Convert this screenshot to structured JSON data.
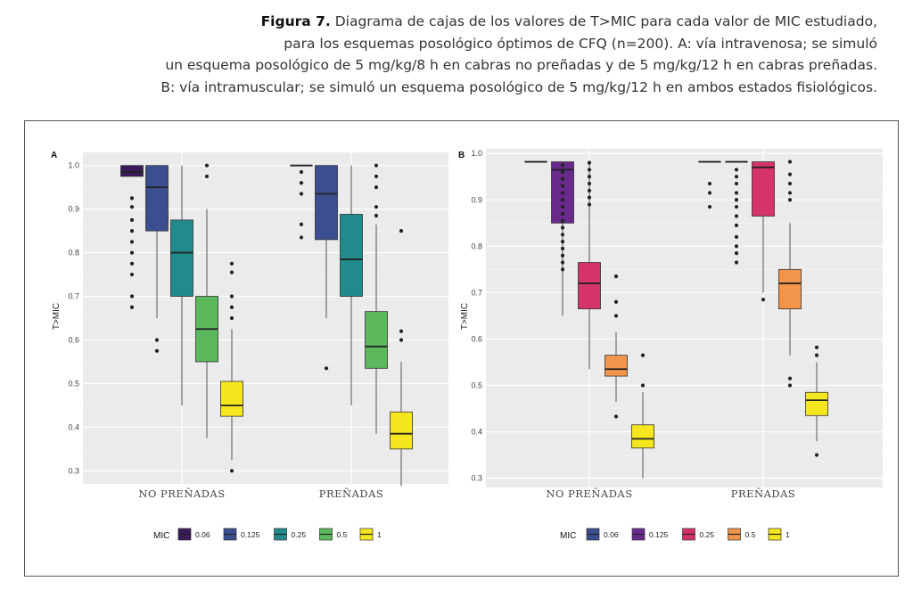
{
  "caption": {
    "label": "Figura 7.",
    "line1": " Diagrama de cajas de los valores de T>MIC para cada valor de MIC estudiado,",
    "line2": "para los esquemas posológico óptimos de CFQ (n=200). A: vía intravenosa; se simuló",
    "line3": "un esquema posológico de 5 mg/kg/8 h en cabras no preñadas y de 5 mg/kg/12 h en cabras preñadas.",
    "line4": "B: vía intramuscular; se simuló un esquema posológico de 5 mg/kg/12 h en ambos estados fisiológicos."
  },
  "chart_data": [
    {
      "type": "box",
      "panel": "A",
      "ylabel": "T>MIC",
      "ylim": [
        0.27,
        1.03
      ],
      "yticks": [
        "0.3",
        "0.4",
        "0.5",
        "0.6",
        "0.7",
        "0.8",
        "0.9",
        "1.0"
      ],
      "categories": [
        "NO PREÑADAS",
        "PREÑADAS"
      ],
      "legend": {
        "title": "MIC",
        "items": [
          {
            "label": "0.06",
            "color": "#3b1a5c"
          },
          {
            "label": "0.125",
            "color": "#3b4e8f"
          },
          {
            "label": "0.25",
            "color": "#218a8d"
          },
          {
            "label": "0.5",
            "color": "#5cb85c"
          },
          {
            "label": "1",
            "color": "#f5e61f"
          }
        ]
      },
      "groups": [
        {
          "category": "NO PREÑADAS",
          "boxes": [
            {
              "mic": "0.06",
              "q1": 0.975,
              "median": 0.985,
              "q3": 1.0,
              "low": 0.975,
              "high": 1.0,
              "outliers": [
                0.925,
                0.905,
                0.875,
                0.85,
                0.825,
                0.8,
                0.775,
                0.75,
                0.7,
                0.675
              ]
            },
            {
              "mic": "0.125",
              "q1": 0.85,
              "median": 0.95,
              "q3": 1.0,
              "low": 0.65,
              "high": 1.0,
              "outliers": [
                0.6,
                0.575
              ]
            },
            {
              "mic": "0.25",
              "q1": 0.7,
              "median": 0.8,
              "q3": 0.875,
              "low": 0.45,
              "high": 1.0,
              "outliers": []
            },
            {
              "mic": "0.5",
              "q1": 0.55,
              "median": 0.625,
              "q3": 0.7,
              "low": 0.375,
              "high": 0.9,
              "outliers": [
                1.0,
                0.975
              ]
            },
            {
              "mic": "1",
              "q1": 0.425,
              "median": 0.45,
              "q3": 0.505,
              "low": 0.325,
              "high": 0.625,
              "outliers": [
                0.775,
                0.755,
                0.7,
                0.675,
                0.65,
                0.3
              ]
            }
          ]
        },
        {
          "category": "PREÑADAS",
          "boxes": [
            {
              "mic": "0.06",
              "q1": 1.0,
              "median": 1.0,
              "q3": 1.0,
              "low": 1.0,
              "high": 1.0,
              "outliers": [
                0.985,
                0.96,
                0.935,
                0.865,
                0.835
              ]
            },
            {
              "mic": "0.125",
              "q1": 0.83,
              "median": 0.935,
              "q3": 1.0,
              "low": 0.65,
              "high": 1.0,
              "outliers": [
                0.535
              ]
            },
            {
              "mic": "0.25",
              "q1": 0.7,
              "median": 0.785,
              "q3": 0.888,
              "low": 0.45,
              "high": 1.0,
              "outliers": []
            },
            {
              "mic": "0.5",
              "q1": 0.535,
              "median": 0.585,
              "q3": 0.665,
              "low": 0.385,
              "high": 0.865,
              "outliers": [
                1.0,
                0.975,
                0.95,
                0.905,
                0.885
              ]
            },
            {
              "mic": "1",
              "q1": 0.35,
              "median": 0.385,
              "q3": 0.435,
              "low": 0.265,
              "high": 0.55,
              "outliers": [
                0.85,
                0.62,
                0.6
              ]
            }
          ]
        }
      ]
    },
    {
      "type": "box",
      "panel": "B",
      "ylabel": "T>MIC",
      "ylim": [
        0.28,
        1.01
      ],
      "yticks": [
        "0.3",
        "0.4",
        "0.5",
        "0.6",
        "0.7",
        "0.8",
        "0.9",
        "1.0"
      ],
      "categories": [
        "NO PREÑADAS",
        "PREÑADAS"
      ],
      "legend": {
        "title": "MIC",
        "items": [
          {
            "label": "0.06",
            "color": "#3b4e8f"
          },
          {
            "label": "0.125",
            "color": "#6a2a8c"
          },
          {
            "label": "0.25",
            "color": "#d6336c"
          },
          {
            "label": "0.5",
            "color": "#f2944a"
          },
          {
            "label": "1",
            "color": "#f5e61f"
          }
        ]
      },
      "groups": [
        {
          "category": "NO PREÑADAS",
          "boxes": [
            {
              "mic": "0.06",
              "q1": 0.982,
              "median": 0.982,
              "q3": 0.982,
              "low": 0.982,
              "high": 0.982,
              "outliers": []
            },
            {
              "mic": "0.125",
              "q1": 0.85,
              "median": 0.965,
              "q3": 0.982,
              "low": 0.65,
              "high": 0.982,
              "outliers": [
                0.975,
                0.96,
                0.945,
                0.93,
                0.915,
                0.9,
                0.885,
                0.87,
                0.855,
                0.84,
                0.825,
                0.81,
                0.795,
                0.78,
                0.765,
                0.75
              ]
            },
            {
              "mic": "0.25",
              "q1": 0.665,
              "median": 0.72,
              "q3": 0.765,
              "low": 0.535,
              "high": 0.982,
              "outliers": [
                0.98,
                0.965,
                0.95,
                0.935,
                0.92,
                0.905,
                0.89
              ]
            },
            {
              "mic": "0.5",
              "q1": 0.52,
              "median": 0.535,
              "q3": 0.565,
              "low": 0.465,
              "high": 0.615,
              "outliers": [
                0.735,
                0.68,
                0.65,
                0.433
              ]
            },
            {
              "mic": "1",
              "q1": 0.365,
              "median": 0.385,
              "q3": 0.415,
              "low": 0.3,
              "high": 0.485,
              "outliers": [
                0.565,
                0.5
              ]
            }
          ]
        },
        {
          "category": "PREÑADAS",
          "boxes": [
            {
              "mic": "0.06",
              "q1": 0.982,
              "median": 0.982,
              "q3": 0.982,
              "low": 0.982,
              "high": 0.982,
              "outliers": [
                0.935,
                0.915,
                0.885
              ]
            },
            {
              "mic": "0.125",
              "q1": 0.982,
              "median": 0.982,
              "q3": 0.982,
              "low": 0.982,
              "high": 0.982,
              "outliers": [
                0.965,
                0.95,
                0.935,
                0.915,
                0.9,
                0.885,
                0.865,
                0.845,
                0.82,
                0.8,
                0.785,
                0.765
              ]
            },
            {
              "mic": "0.25",
              "q1": 0.865,
              "median": 0.97,
              "q3": 0.982,
              "low": 0.7,
              "high": 0.982,
              "outliers": [
                0.685
              ]
            },
            {
              "mic": "0.5",
              "q1": 0.665,
              "median": 0.72,
              "q3": 0.75,
              "low": 0.565,
              "high": 0.85,
              "outliers": [
                0.982,
                0.955,
                0.935,
                0.915,
                0.9,
                0.515,
                0.5
              ]
            },
            {
              "mic": "1",
              "q1": 0.435,
              "median": 0.468,
              "q3": 0.485,
              "low": 0.38,
              "high": 0.55,
              "outliers": [
                0.582,
                0.565,
                0.35
              ]
            }
          ]
        }
      ]
    }
  ]
}
